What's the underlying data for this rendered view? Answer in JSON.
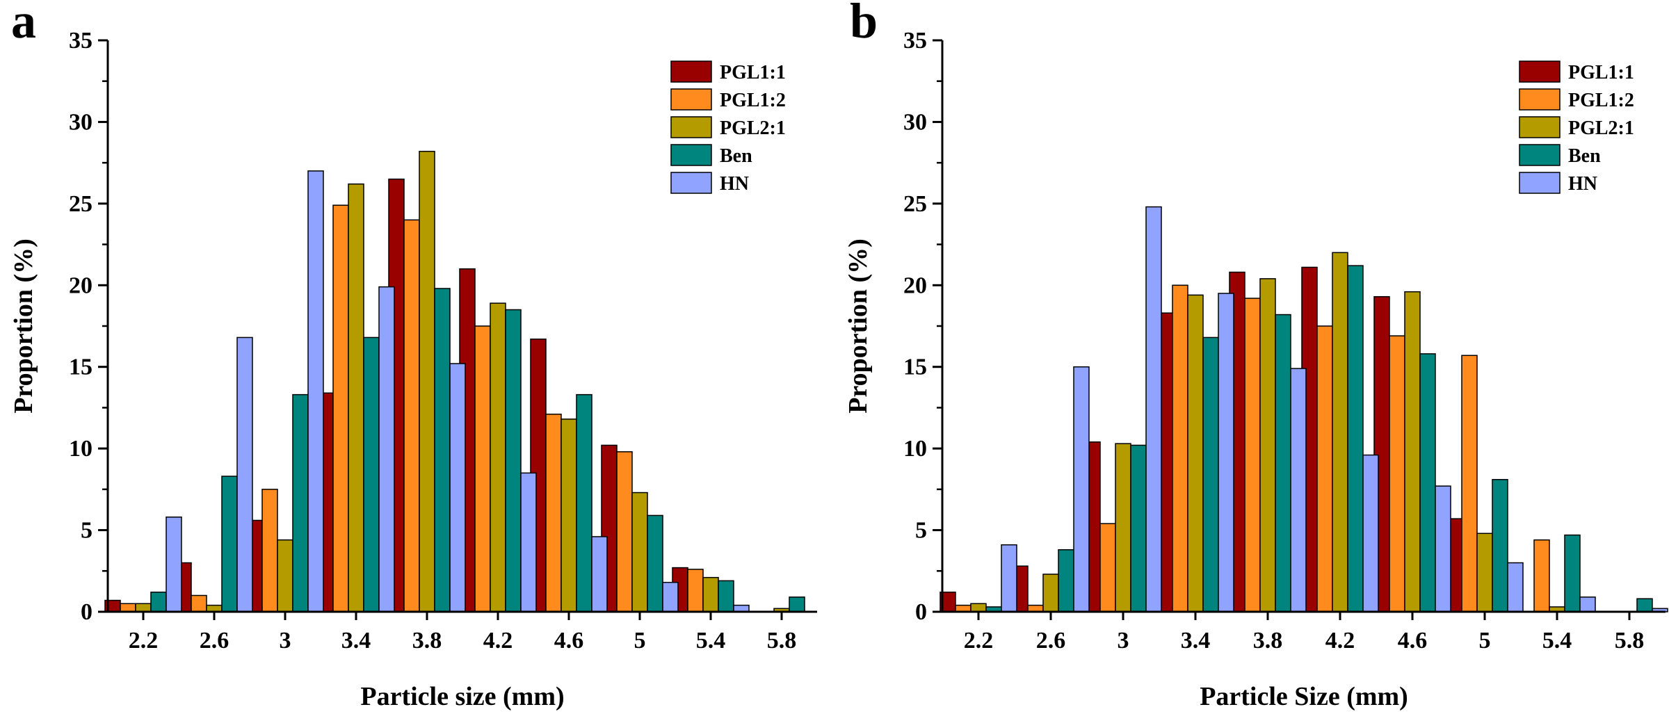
{
  "colors": {
    "PGL1:1": "#990000",
    "PGL1:2": "#ff8a1e",
    "PGL2:1": "#b39b00",
    "Ben": "#00857e",
    "HN": "#8fa3ff"
  },
  "chart_data": [
    {
      "panel_label": "a",
      "type": "bar",
      "title": "",
      "xlabel": "Particle size (mm)",
      "ylabel": "Proportion (%)",
      "ylim": [
        0,
        35
      ],
      "yticks": [
        0,
        5,
        10,
        15,
        20,
        25,
        30,
        35
      ],
      "legend_position": "top-right",
      "categories": [
        "2.2",
        "2.6",
        "3",
        "3.4",
        "3.8",
        "4.2",
        "4.6",
        "5",
        "5.4",
        "5.8"
      ],
      "series": [
        {
          "name": "PGL1:1",
          "values": [
            0.7,
            3.0,
            5.6,
            13.4,
            26.5,
            21.0,
            16.7,
            10.2,
            2.7,
            0.0
          ]
        },
        {
          "name": "PGL1:2",
          "values": [
            0.5,
            1.0,
            7.5,
            24.9,
            24.0,
            17.5,
            12.1,
            9.8,
            2.6,
            0.0
          ]
        },
        {
          "name": "PGL2:1",
          "values": [
            0.5,
            0.4,
            4.4,
            26.2,
            28.2,
            18.9,
            11.8,
            7.3,
            2.1,
            0.2
          ]
        },
        {
          "name": "Ben",
          "values": [
            1.2,
            8.3,
            13.3,
            16.8,
            19.8,
            18.5,
            13.3,
            5.9,
            1.9,
            0.9
          ]
        },
        {
          "name": "HN",
          "values": [
            5.8,
            16.8,
            27.0,
            19.9,
            15.2,
            8.5,
            4.6,
            1.8,
            0.4,
            0.0
          ]
        }
      ]
    },
    {
      "panel_label": "b",
      "type": "bar",
      "title": "",
      "xlabel": "Particle Size (mm)",
      "ylabel": "Proportion (%)",
      "ylim": [
        0,
        35
      ],
      "yticks": [
        0,
        5,
        10,
        15,
        20,
        25,
        30,
        35
      ],
      "legend_position": "top-right",
      "categories": [
        "2.2",
        "2.6",
        "3",
        "3.4",
        "3.8",
        "4.2",
        "4.6",
        "5",
        "5.4",
        "5.8"
      ],
      "series": [
        {
          "name": "PGL1:1",
          "values": [
            1.2,
            2.8,
            10.4,
            18.3,
            20.8,
            21.1,
            19.3,
            5.7,
            0.0,
            0.0
          ]
        },
        {
          "name": "PGL1:2",
          "values": [
            0.4,
            0.4,
            5.4,
            20.0,
            19.2,
            17.5,
            16.9,
            15.7,
            4.4,
            0.0
          ]
        },
        {
          "name": "PGL2:1",
          "values": [
            0.5,
            2.3,
            10.3,
            19.4,
            20.4,
            22.0,
            19.6,
            4.8,
            0.3,
            0.0
          ]
        },
        {
          "name": "Ben",
          "values": [
            0.3,
            3.8,
            10.2,
            16.8,
            18.2,
            21.2,
            15.8,
            8.1,
            4.7,
            0.8
          ]
        },
        {
          "name": "HN",
          "values": [
            4.1,
            15.0,
            24.8,
            19.5,
            14.9,
            9.6,
            7.7,
            3.0,
            0.9,
            0.2
          ]
        }
      ]
    }
  ]
}
